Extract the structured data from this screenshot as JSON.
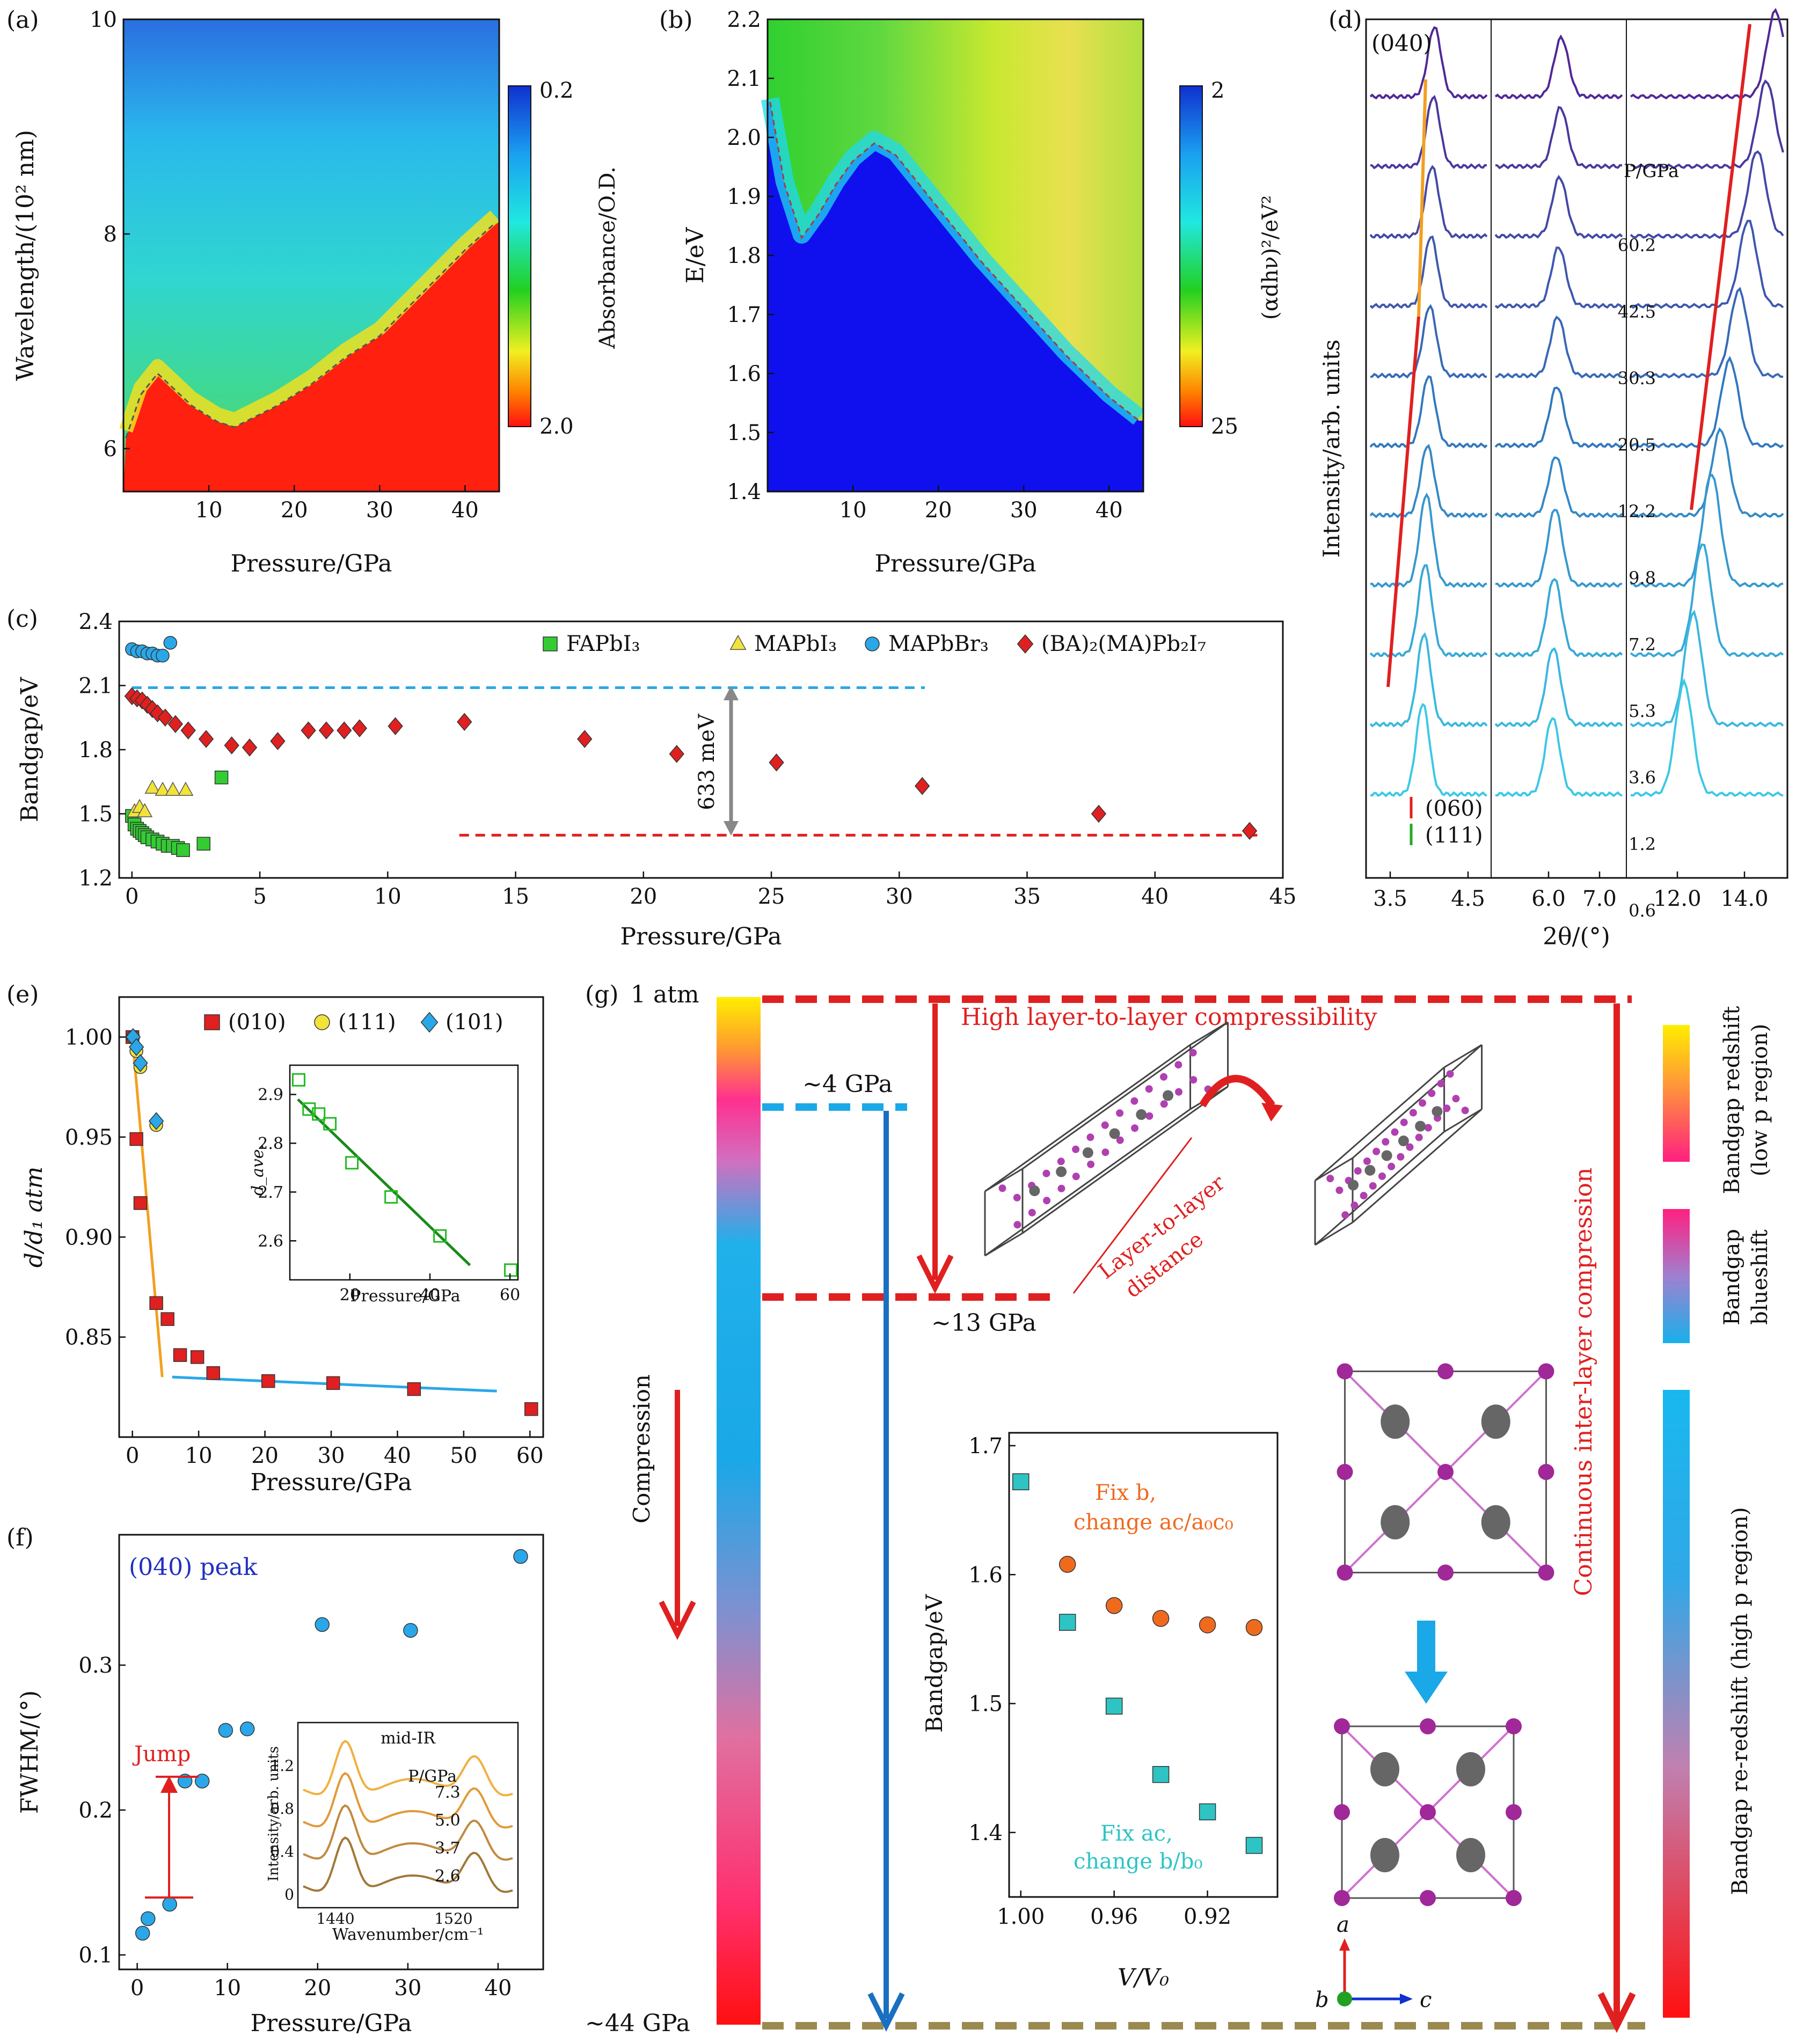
{
  "figure": {
    "panel_labels": {
      "a": "(a)",
      "b": "(b)",
      "c": "(c)",
      "d": "(d)",
      "e": "(e)",
      "f": "(f)",
      "g": "(g)"
    }
  },
  "chart_data": [
    {
      "id": "a",
      "type": "heatmap",
      "xlabel": "Pressure/GPa",
      "ylabel": "Wavelength/(10² nm)",
      "xticks": [
        10,
        20,
        30,
        40
      ],
      "yticks": [
        6,
        8,
        10
      ],
      "xlim": [
        0,
        44
      ],
      "ylim": [
        5.6,
        10
      ],
      "colorbar": {
        "label": "Absorbance/O.D.",
        "top": "0.2",
        "bottom": "2.0"
      },
      "edge": [
        [
          0.3,
          6.1
        ],
        [
          2,
          6.5
        ],
        [
          4,
          6.7
        ],
        [
          6,
          6.55
        ],
        [
          8,
          6.4
        ],
        [
          11,
          6.25
        ],
        [
          13,
          6.2
        ],
        [
          18,
          6.4
        ],
        [
          22,
          6.6
        ],
        [
          26,
          6.85
        ],
        [
          30,
          7.05
        ],
        [
          35,
          7.45
        ],
        [
          40,
          7.85
        ],
        [
          43.5,
          8.1
        ]
      ]
    },
    {
      "id": "b",
      "type": "heatmap",
      "xlabel": "Pressure/GPa",
      "ylabel": "E/eV",
      "xticks": [
        10,
        20,
        30,
        40
      ],
      "yticks": [
        1.4,
        1.5,
        1.6,
        1.7,
        1.8,
        1.9,
        2.0,
        2.1,
        2.2
      ],
      "xlim": [
        0,
        44
      ],
      "ylim": [
        1.4,
        2.2
      ],
      "colorbar": {
        "label": "(αdhν)²/eV²",
        "top": "2",
        "bottom": "25"
      },
      "edge": [
        [
          0.3,
          2.06
        ],
        [
          2,
          1.92
        ],
        [
          4,
          1.83
        ],
        [
          6,
          1.87
        ],
        [
          8,
          1.92
        ],
        [
          10,
          1.96
        ],
        [
          12.5,
          1.99
        ],
        [
          15,
          1.97
        ],
        [
          20,
          1.88
        ],
        [
          25,
          1.79
        ],
        [
          30,
          1.71
        ],
        [
          35,
          1.63
        ],
        [
          40,
          1.56
        ],
        [
          43.5,
          1.52
        ]
      ]
    },
    {
      "id": "c",
      "type": "scatter",
      "xlabel": "Pressure/GPa",
      "ylabel": "Bandgap/eV",
      "xlim": [
        -0.5,
        45
      ],
      "ylim": [
        1.2,
        2.4
      ],
      "xticks": [
        0,
        5,
        10,
        15,
        20,
        25,
        30,
        35,
        40,
        45
      ],
      "yticks": [
        1.2,
        1.5,
        1.8,
        2.1,
        2.4
      ],
      "annotation": "633 meV",
      "series": [
        {
          "name": "FAPbI₃",
          "marker": "square",
          "color": "#33cc33",
          "points": [
            [
              0.0,
              1.49
            ],
            [
              0.1,
              1.45
            ],
            [
              0.2,
              1.43
            ],
            [
              0.3,
              1.42
            ],
            [
              0.4,
              1.41
            ],
            [
              0.5,
              1.4
            ],
            [
              0.6,
              1.39
            ],
            [
              0.8,
              1.38
            ],
            [
              1.0,
              1.37
            ],
            [
              1.2,
              1.36
            ],
            [
              1.4,
              1.35
            ],
            [
              1.6,
              1.35
            ],
            [
              1.8,
              1.34
            ],
            [
              2.0,
              1.33
            ],
            [
              2.8,
              1.36
            ],
            [
              3.5,
              1.67
            ]
          ]
        },
        {
          "name": "MAPbI₃",
          "marker": "triangle",
          "color": "#f2e33a",
          "points": [
            [
              0.1,
              1.51
            ],
            [
              0.3,
              1.53
            ],
            [
              0.5,
              1.51
            ],
            [
              0.8,
              1.62
            ],
            [
              1.2,
              1.61
            ],
            [
              1.6,
              1.61
            ],
            [
              2.1,
              1.61
            ]
          ]
        },
        {
          "name": "MAPbBr₃",
          "marker": "circle",
          "color": "#2aa7e8",
          "points": [
            [
              0.0,
              2.27
            ],
            [
              0.2,
              2.26
            ],
            [
              0.4,
              2.26
            ],
            [
              0.6,
              2.25
            ],
            [
              0.8,
              2.25
            ],
            [
              1.0,
              2.24
            ],
            [
              1.2,
              2.24
            ],
            [
              1.5,
              2.3
            ]
          ]
        },
        {
          "name": "(BA)₂(MA)Pb₂I₇",
          "marker": "diamond",
          "color": "#e02020",
          "points": [
            [
              0.0,
              2.05
            ],
            [
              0.2,
              2.04
            ],
            [
              0.4,
              2.03
            ],
            [
              0.6,
              2.01
            ],
            [
              0.8,
              1.99
            ],
            [
              1.0,
              1.97
            ],
            [
              1.3,
              1.95
            ],
            [
              1.7,
              1.92
            ],
            [
              2.2,
              1.89
            ],
            [
              2.9,
              1.85
            ],
            [
              3.9,
              1.82
            ],
            [
              4.6,
              1.81
            ],
            [
              5.7,
              1.84
            ],
            [
              6.9,
              1.89
            ],
            [
              7.6,
              1.89
            ],
            [
              8.3,
              1.89
            ],
            [
              8.9,
              1.9
            ],
            [
              10.3,
              1.91
            ],
            [
              13.0,
              1.93
            ],
            [
              17.7,
              1.85
            ],
            [
              21.3,
              1.78
            ],
            [
              25.2,
              1.74
            ],
            [
              30.9,
              1.63
            ],
            [
              37.8,
              1.5
            ],
            [
              43.7,
              1.42
            ]
          ]
        }
      ],
      "reference_lines": [
        {
          "y": 2.09,
          "x": [
            0,
            31
          ],
          "color": "#2aa7e8"
        },
        {
          "y": 1.4,
          "x": [
            12.8,
            44
          ],
          "color": "#e02020"
        }
      ]
    },
    {
      "id": "d",
      "type": "line",
      "xlabel": "2θ/(°)",
      "ylabel": "Intensity/arb. units",
      "pressure_label": "P/GPa",
      "pressures": [
        "60.2",
        "42.5",
        "30.3",
        "20.5",
        "12.2",
        "9.8",
        "7.2",
        "5.3",
        "3.6",
        "1.2",
        "0.6"
      ],
      "x_segments": [
        {
          "ticks": [
            "3.5",
            "4.5"
          ],
          "range": [
            3.5,
            4.9
          ]
        },
        {
          "ticks": [
            "6.0",
            "7.0"
          ],
          "range": [
            5.1,
            7.2
          ]
        },
        {
          "ticks": [
            "12.0",
            "14.0"
          ],
          "range": [
            10.8,
            15.2
          ]
        }
      ],
      "labels": {
        "peak_040": "(040)",
        "peak_060": "(060)",
        "peak_111": "(111)"
      }
    },
    {
      "id": "e",
      "type": "scatter",
      "xlabel": "Pressure/GPa",
      "ylabel": "d/d₁ atm",
      "xlim": [
        -2,
        62
      ],
      "ylim": [
        0.8,
        1.02
      ],
      "xticks": [
        0,
        10,
        20,
        30,
        40,
        50,
        60
      ],
      "yticks": [
        0.85,
        0.9,
        0.95,
        1.0
      ],
      "series": [
        {
          "name": "(010)",
          "marker": "square",
          "color": "#e02020",
          "points": [
            [
              0,
              1.0
            ],
            [
              0.6,
              0.949
            ],
            [
              1.2,
              0.917
            ],
            [
              3.6,
              0.867
            ],
            [
              5.3,
              0.859
            ],
            [
              7.2,
              0.841
            ],
            [
              9.8,
              0.84
            ],
            [
              12.2,
              0.832
            ],
            [
              20.5,
              0.828
            ],
            [
              30.3,
              0.827
            ],
            [
              42.5,
              0.824
            ],
            [
              60.2,
              0.814
            ]
          ]
        },
        {
          "name": "(111)",
          "marker": "circle",
          "color": "#f2e33a",
          "points": [
            [
              0.1,
              1.0
            ],
            [
              0.6,
              0.993
            ],
            [
              1.2,
              0.985
            ],
            [
              3.6,
              0.956
            ]
          ]
        },
        {
          "name": "(101)",
          "marker": "diamond",
          "color": "#2aa7e8",
          "points": [
            [
              0.1,
              1.0
            ],
            [
              0.6,
              0.995
            ],
            [
              1.2,
              0.987
            ],
            [
              3.6,
              0.958
            ]
          ]
        }
      ],
      "fits": [
        {
          "color": "#f2a020",
          "from": [
            0,
            1.0
          ],
          "to": [
            4.5,
            0.83
          ]
        },
        {
          "color": "#2aa7e8",
          "from": [
            6,
            0.83
          ],
          "to": [
            55,
            0.823
          ]
        }
      ],
      "inset": {
        "xlabel": "Pressure/GPa",
        "ylabel": "d_ave.",
        "xlim": [
          5,
          62
        ],
        "ylim": [
          2.52,
          2.96
        ],
        "xticks": [
          20,
          40,
          60
        ],
        "yticks": [
          2.6,
          2.7,
          2.8,
          2.9
        ],
        "points": [
          [
            7.2,
            2.93
          ],
          [
            9.8,
            2.87
          ],
          [
            12.2,
            2.86
          ],
          [
            15,
            2.84
          ],
          [
            20.5,
            2.76
          ],
          [
            30.3,
            2.69
          ],
          [
            42.5,
            2.61
          ],
          [
            60.2,
            2.54
          ]
        ],
        "fit": [
          [
            7,
            2.89
          ],
          [
            50,
            2.55
          ]
        ]
      }
    },
    {
      "id": "f",
      "type": "scatter",
      "title": "(040) peak",
      "annotation": "Jump",
      "xlabel": "Pressure/GPa",
      "ylabel": "FWHM/(°)",
      "xlim": [
        -2,
        45
      ],
      "ylim": [
        0.09,
        0.39
      ],
      "xticks": [
        0,
        10,
        20,
        30,
        40
      ],
      "yticks": [
        0.1,
        0.2,
        0.3
      ],
      "points": [
        [
          0.6,
          0.115
        ],
        [
          1.2,
          0.125
        ],
        [
          3.6,
          0.135
        ],
        [
          5.3,
          0.22
        ],
        [
          7.2,
          0.22
        ],
        [
          9.8,
          0.255
        ],
        [
          12.2,
          0.256
        ],
        [
          20.5,
          0.328
        ],
        [
          30.3,
          0.324
        ],
        [
          42.5,
          0.375
        ]
      ],
      "inset": {
        "title": "mid-IR",
        "xlabel": "Wavenumber/cm⁻¹",
        "ylabel": "Intensity/arb. units",
        "pressure_label": "P/GPa",
        "xticks": [
          "1440",
          "1520"
        ],
        "yticks": [
          "0",
          "0.4",
          "0.8",
          "1.2"
        ],
        "curves": [
          "7.3",
          "5.0",
          "3.7",
          "2.6"
        ]
      }
    },
    {
      "id": "g_inset",
      "type": "scatter",
      "xlabel": "V/V₀",
      "ylabel": "Bandgap/eV",
      "xlim": [
        1.005,
        0.89
      ],
      "ylim": [
        1.35,
        1.71
      ],
      "xticks": [
        "1.00",
        "0.96",
        "0.92"
      ],
      "yticks": [
        "1.4",
        "1.5",
        "1.6",
        "1.7"
      ],
      "series": [
        {
          "name": "Fix b, change ac/a₀c₀",
          "marker": "circle",
          "color": "#f06a1e",
          "points": [
            [
              1.0,
              1.672
            ],
            [
              0.98,
              1.608
            ],
            [
              0.96,
              1.576
            ],
            [
              0.94,
              1.566
            ],
            [
              0.92,
              1.561
            ],
            [
              0.9,
              1.559
            ]
          ]
        },
        {
          "name": "Fix ac, change b/b₀",
          "marker": "square",
          "color": "#2ec4c4",
          "points": [
            [
              1.0,
              1.672
            ],
            [
              0.98,
              1.563
            ],
            [
              0.96,
              1.498
            ],
            [
              0.94,
              1.445
            ],
            [
              0.92,
              1.416
            ],
            [
              0.9,
              1.39
            ]
          ]
        }
      ]
    }
  ],
  "panel_g": {
    "pressures": {
      "p0": "1 atm",
      "p1": "~4 GPa",
      "p2": "~13 GPa",
      "p3": "~44 GPa"
    },
    "compression": "Compression",
    "high_layer": "High layer-to-layer compressibility",
    "layer_distance_1": "Layer-to-layer",
    "layer_distance_2": "distance",
    "continuous": "Continuous inter-layer compression",
    "inset_fix_b_1": "Fix b,",
    "inset_fix_b_2": "change ac/a₀c₀",
    "inset_fix_ac_1": "Fix ac,",
    "inset_fix_ac_2": "change b/b₀",
    "right_bar_1a": "Bandgap redshift",
    "right_bar_1b": "(low p region)",
    "right_bar_2a": "Bandgap",
    "right_bar_2b": "blueshift",
    "right_bar_3": "Bandgap re-redshift (high p region)",
    "axes": {
      "a": "a",
      "b": "b",
      "c": "c"
    }
  }
}
